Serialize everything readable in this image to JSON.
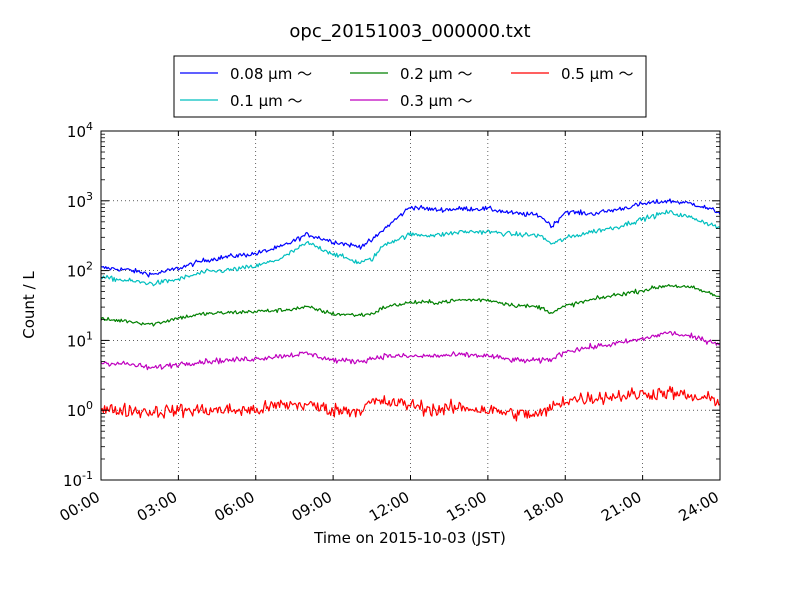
{
  "chart_data": {
    "type": "line",
    "title": "opc_20151003_000000.txt",
    "xlabel": "Time on 2015-10-03 (JST)",
    "ylabel": "Count / L",
    "y_scale": "log",
    "ylim": [
      0.1,
      10000
    ],
    "xlim": [
      "00:00",
      "24:00"
    ],
    "grid": true,
    "legend_position": "top-center (above plot)",
    "x_ticks": [
      "00:00",
      "03:00",
      "06:00",
      "09:00",
      "12:00",
      "15:00",
      "18:00",
      "21:00",
      "24:00"
    ],
    "y_ticks": [
      {
        "base": "10",
        "exp": "-1"
      },
      {
        "base": "10",
        "exp": "0"
      },
      {
        "base": "10",
        "exp": "1"
      },
      {
        "base": "10",
        "exp": "2"
      },
      {
        "base": "10",
        "exp": "3"
      },
      {
        "base": "10",
        "exp": "4"
      }
    ],
    "x": [
      "00:00",
      "01:00",
      "02:00",
      "03:00",
      "04:00",
      "05:00",
      "06:00",
      "07:00",
      "08:00",
      "09:00",
      "10:00",
      "10:30",
      "11:00",
      "12:00",
      "13:00",
      "14:00",
      "15:00",
      "16:00",
      "17:00",
      "17:30",
      "18:00",
      "19:00",
      "20:00",
      "21:00",
      "22:00",
      "23:00",
      "24:00"
    ],
    "series": [
      {
        "name": "0.08 µm ～",
        "color": "#0000ff",
        "noise": 0.035,
        "values": [
          110,
          103,
          88,
          108,
          140,
          160,
          175,
          220,
          330,
          260,
          220,
          270,
          400,
          820,
          740,
          770,
          770,
          660,
          620,
          430,
          700,
          650,
          750,
          900,
          1000,
          900,
          680
        ]
      },
      {
        "name": "0.1 µm ～",
        "color": "#00bfbf",
        "noise": 0.035,
        "values": [
          80,
          72,
          65,
          75,
          95,
          102,
          115,
          150,
          250,
          175,
          130,
          145,
          240,
          330,
          320,
          360,
          360,
          330,
          320,
          240,
          290,
          360,
          420,
          550,
          690,
          560,
          410
        ]
      },
      {
        "name": "0.2 µm ～",
        "color": "#008000",
        "noise": 0.03,
        "values": [
          20,
          19,
          17,
          21,
          24,
          25,
          26,
          27,
          30,
          24,
          23,
          24,
          30,
          35,
          35,
          38,
          38,
          32,
          30,
          25,
          31,
          38,
          45,
          52,
          62,
          56,
          42
        ]
      },
      {
        "name": "0.3 µm ～",
        "color": "#bf00bf",
        "noise": 0.04,
        "values": [
          4.8,
          4.6,
          4.0,
          4.6,
          5.0,
          5.2,
          5.5,
          6.0,
          6.5,
          5.2,
          5.0,
          5.5,
          6.0,
          5.9,
          6.0,
          6.2,
          6.0,
          5.2,
          5.1,
          5.4,
          7.0,
          8.0,
          9.0,
          10.5,
          13,
          11,
          9
        ]
      },
      {
        "name": "0.5 µm ～",
        "color": "#ff0000",
        "noise": 0.1,
        "values": [
          1.0,
          1.0,
          0.95,
          1.0,
          1.0,
          1.0,
          1.0,
          1.2,
          1.2,
          1.0,
          1.0,
          1.3,
          1.3,
          1.2,
          1.0,
          1.1,
          1.0,
          0.9,
          0.85,
          1.1,
          1.4,
          1.5,
          1.6,
          1.7,
          1.8,
          1.5,
          1.4
        ]
      }
    ]
  }
}
